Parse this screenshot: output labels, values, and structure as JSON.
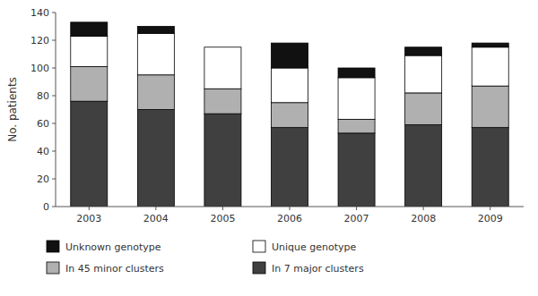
{
  "chart_data": {
    "type": "bar",
    "stacked": true,
    "categories": [
      "2003",
      "2004",
      "2005",
      "2006",
      "2007",
      "2008",
      "2009"
    ],
    "series": [
      {
        "name": "In 7 major clusters",
        "color": "#404040",
        "values": [
          76,
          70,
          67,
          57,
          53,
          59,
          57
        ]
      },
      {
        "name": "In 45 minor clusters",
        "color": "#b0b0b0",
        "values": [
          25,
          25,
          18,
          18,
          10,
          23,
          30
        ]
      },
      {
        "name": "Unique genotype",
        "color": "#ffffff",
        "values": [
          22,
          30,
          30,
          25,
          30,
          27,
          28
        ]
      },
      {
        "name": "Unknown genotype",
        "color": "#111111",
        "values": [
          10,
          5,
          0,
          18,
          7,
          6,
          3
        ]
      }
    ],
    "ylabel": "No. patients",
    "ylim": [
      0,
      140
    ],
    "yticks": [
      0,
      20,
      40,
      60,
      80,
      100,
      120,
      140
    ],
    "grid": false,
    "legend": "bottom"
  }
}
